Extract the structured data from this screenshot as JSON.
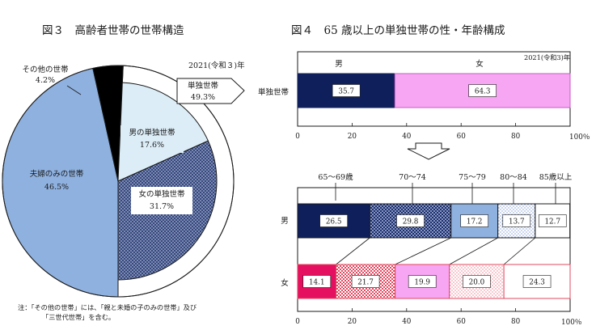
{
  "left": {
    "title": "図３　高齢者世帯の世帯構造",
    "year": "2021(令和３)年",
    "callout": {
      "label": "単独世帯",
      "value": "49.3%"
    },
    "note": [
      "注：「その他の世帯」には、「親と未婚の子のみの世帯」及び",
      "「三世代世帯」を含む。"
    ]
  },
  "right": {
    "title": "図４　65 歳以上の単独世帯の性・年齢構成",
    "year": "2021(令和3)年",
    "percent_unit": "100％"
  },
  "colors": {
    "navy": "#0e1f5c",
    "pink": "#f7a6f3",
    "light_blue": "#8fb1df",
    "pale_blue": "#dcedf7",
    "crimson": "#e5105f",
    "red_dots": "#e0485f"
  },
  "chart_data": [
    {
      "type": "pie",
      "slices": [
        {
          "name": "夫婦のみの世帯",
          "value": 46.5,
          "label": "46.5%",
          "color": "#8fb1df"
        },
        {
          "name": "その他の世帯",
          "value": 4.2,
          "label": "4.2%",
          "color": "#000000"
        },
        {
          "name": "男の単独世帯",
          "value": 17.6,
          "label": "17.6%",
          "color": "#dcedf7"
        },
        {
          "name": "女の単独世帯",
          "value": 31.7,
          "label": "31.7%",
          "color": "#2c3e73",
          "pattern": "crosshatch"
        }
      ],
      "group_ring": {
        "name": "単独世帯",
        "value": 49.3,
        "label": "49.3%"
      }
    },
    {
      "type": "bar",
      "orientation": "horizontal",
      "stacked": true,
      "categories": [
        "単独世帯"
      ],
      "series": [
        {
          "name": "男",
          "values": [
            35.7
          ],
          "color": "#0e1f5c"
        },
        {
          "name": "女",
          "values": [
            64.3
          ],
          "color": "#f7a6f3"
        }
      ],
      "xlim": [
        0,
        100
      ],
      "xticks": [
        "0",
        "20",
        "40",
        "60",
        "80"
      ]
    },
    {
      "type": "bar",
      "orientation": "horizontal",
      "stacked": true,
      "categories": [
        "男",
        "女"
      ],
      "series": [
        {
          "name": "65～69歳",
          "values": [
            26.5,
            14.1
          ]
        },
        {
          "name": "70～74",
          "values": [
            29.8,
            21.7
          ]
        },
        {
          "name": "75～79",
          "values": [
            17.2,
            19.9
          ]
        },
        {
          "name": "80～84",
          "values": [
            13.7,
            20.0
          ]
        },
        {
          "name": "85歳以上",
          "values": [
            12.7,
            24.3
          ]
        }
      ],
      "xlim": [
        0,
        100
      ],
      "xticks": [
        "0",
        "20",
        "40",
        "60",
        "80"
      ]
    }
  ]
}
